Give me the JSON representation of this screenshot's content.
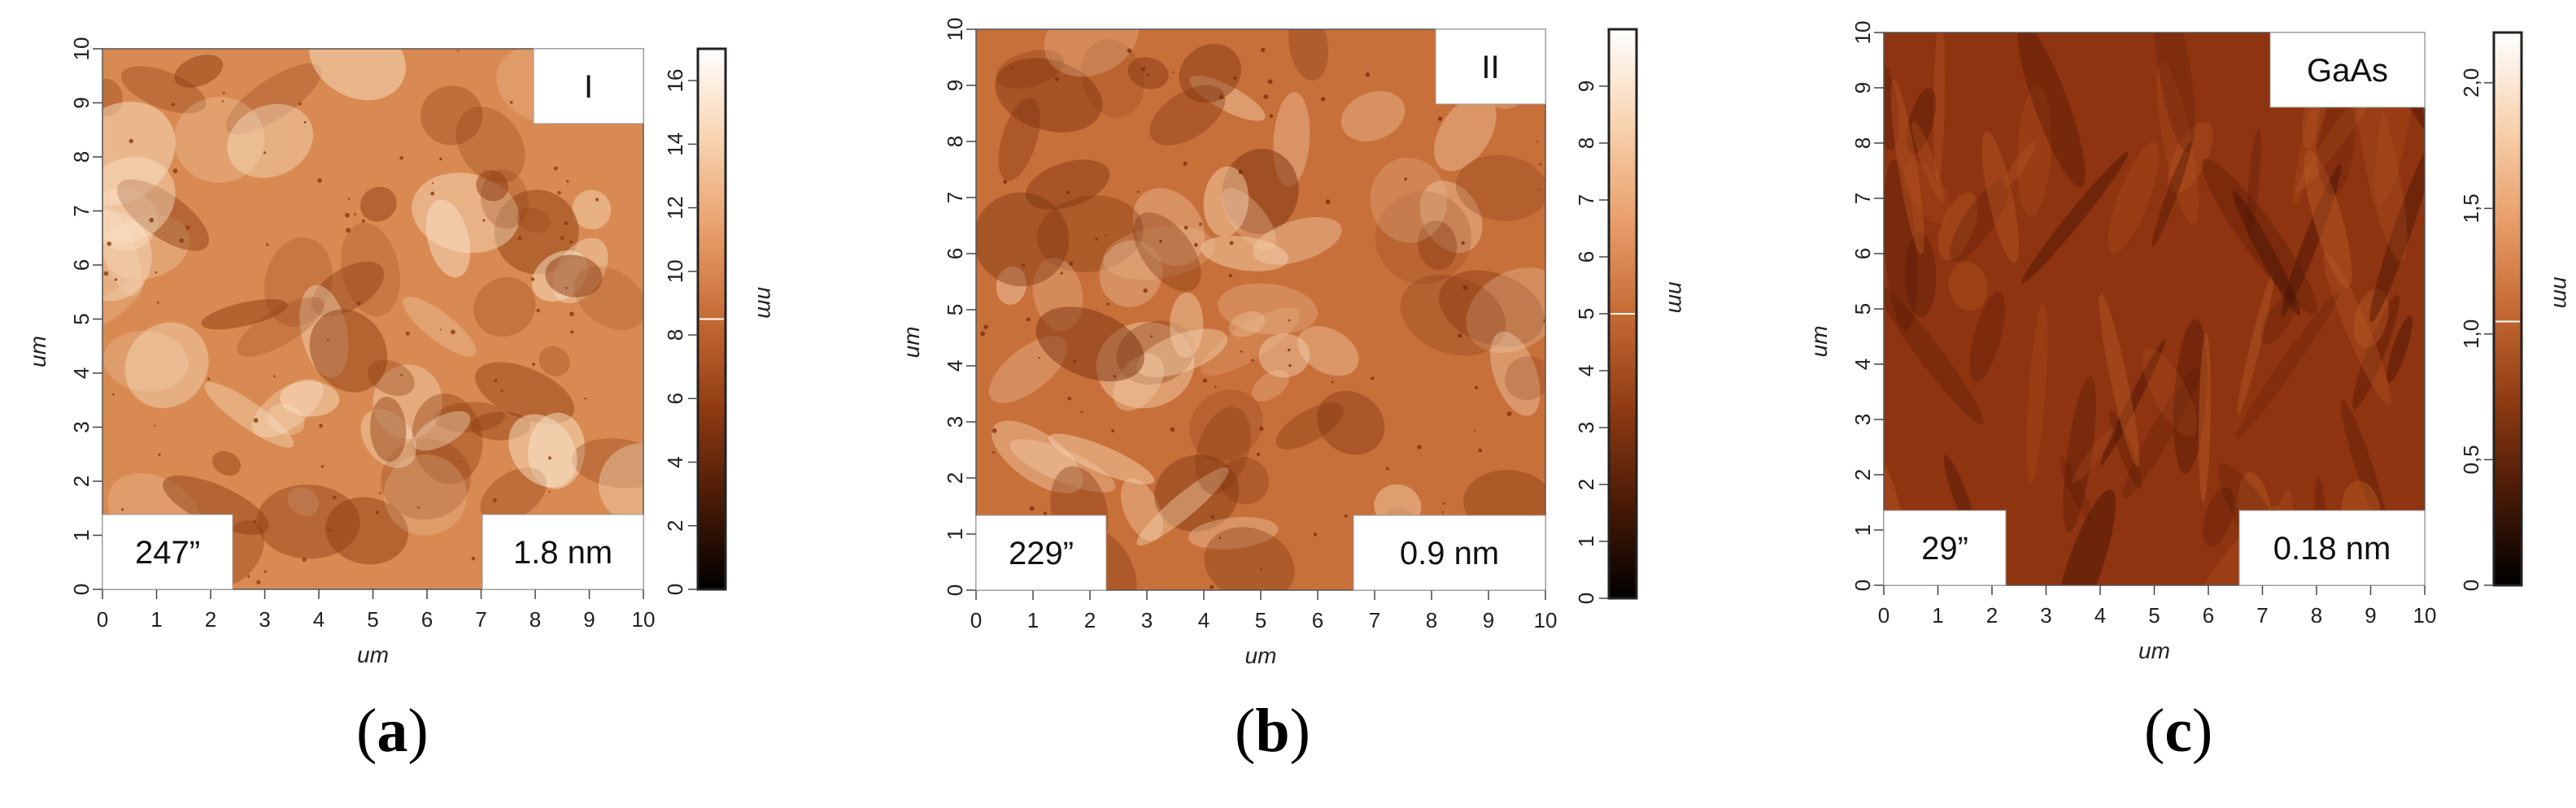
{
  "panels": [
    {
      "caption_letter": "a",
      "label": "I",
      "angle_text": "247”",
      "roughness_text": "1.8 nm",
      "x_axis_label": "um",
      "y_axis_label": "um",
      "colorbar_label": "nm",
      "axis_ticks": [
        "0",
        "1",
        "2",
        "3",
        "4",
        "5",
        "6",
        "7",
        "8",
        "9",
        "10"
      ],
      "colorbar_ticks": [
        "0",
        "2",
        "4",
        "6",
        "8",
        "10",
        "12",
        "14",
        "16"
      ],
      "colorbar_range": [
        0,
        17
      ],
      "colorbar_marker": 8.5,
      "image_colors": {
        "low": "#8a3a0f",
        "mid": "#d98a52",
        "high": "#fbe4c8"
      }
    },
    {
      "caption_letter": "b",
      "label": "II",
      "angle_text": "229”",
      "roughness_text": "0.9 nm",
      "x_axis_label": "um",
      "y_axis_label": "um",
      "colorbar_label": "nm",
      "axis_ticks": [
        "0",
        "1",
        "2",
        "3",
        "4",
        "5",
        "6",
        "7",
        "8",
        "9",
        "10"
      ],
      "colorbar_ticks": [
        "0",
        "1",
        "2",
        "3",
        "4",
        "5",
        "6",
        "7",
        "8",
        "9"
      ],
      "colorbar_range": [
        0,
        10
      ],
      "colorbar_marker": 5,
      "image_colors": {
        "low": "#7a300c",
        "mid": "#c8703a",
        "high": "#f6d2ae"
      }
    },
    {
      "caption_letter": "c",
      "label": "GaAs",
      "angle_text": "29”",
      "roughness_text": "0.18 nm",
      "x_axis_label": "um",
      "y_axis_label": "um",
      "colorbar_label": "nm",
      "axis_ticks": [
        "0",
        "1",
        "2",
        "3",
        "4",
        "5",
        "6",
        "7",
        "8",
        "9",
        "10"
      ],
      "colorbar_ticks": [
        "0",
        "0,5",
        "1,0",
        "1,5",
        "2,0"
      ],
      "colorbar_range": [
        0,
        2.2
      ],
      "colorbar_marker": 1.05,
      "image_colors": {
        "low": "#4a1404",
        "mid": "#8f3410",
        "high": "#b85a26"
      }
    }
  ],
  "caption_open": "(",
  "caption_close": ")",
  "colorbar_gradient": [
    "#000000",
    "#4a1a06",
    "#8f3b12",
    "#c66a34",
    "#e9a06c",
    "#f8d3b0",
    "#ffffff"
  ]
}
